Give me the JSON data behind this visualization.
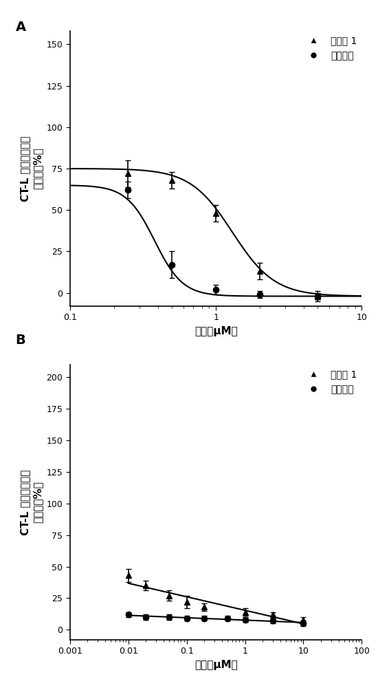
{
  "panel_A": {
    "label": "A",
    "xlabel": "剂量（μM）",
    "ylabel_line1": "CT-L 蛋白酶体活性",
    "ylabel_line2": "（对照的%）",
    "xlog_min": 0.1,
    "xlog_max": 10,
    "ylim": [
      -8,
      158
    ],
    "yticks": [
      0,
      25,
      50,
      75,
      100,
      125,
      150
    ],
    "series": [
      {
        "name": "实施例 1",
        "marker": "^",
        "x": [
          0.25,
          0.5,
          1.0,
          2.0,
          5.0
        ],
        "y": [
          72,
          68,
          48,
          13,
          -2
        ],
        "yerr": [
          8,
          5,
          5,
          5,
          3
        ],
        "ic50": 1.3,
        "hill": 3.0,
        "top": 75,
        "bottom": -2
      },
      {
        "name": "硷替佐米",
        "marker": "o",
        "x": [
          0.25,
          0.5,
          1.0,
          2.0,
          5.0
        ],
        "y": [
          62,
          17,
          2,
          -1,
          -2
        ],
        "yerr": [
          5,
          8,
          3,
          2,
          2
        ],
        "ic50": 0.38,
        "hill": 4.5,
        "top": 65,
        "bottom": -2
      }
    ]
  },
  "panel_B": {
    "label": "B",
    "xlabel": "剂量（μM）",
    "ylabel_line1": "CT-L 蛋白酶体活性",
    "ylabel_line2": "（对照的%）",
    "xlog_min": 0.001,
    "xlog_max": 100,
    "ylim": [
      -8,
      210
    ],
    "yticks": [
      0,
      25,
      50,
      75,
      100,
      125,
      150,
      175,
      200
    ],
    "series": [
      {
        "name": "实施例 1",
        "marker": "^",
        "x": [
          0.01,
          0.02,
          0.05,
          0.1,
          0.2,
          1.0,
          3.0,
          10.0
        ],
        "y": [
          43,
          35,
          27,
          22,
          18,
          14,
          12,
          8
        ],
        "yerr": [
          5,
          4,
          4,
          5,
          3,
          3,
          2,
          2
        ]
      },
      {
        "name": "硷替佐米",
        "marker": "o",
        "x": [
          0.01,
          0.02,
          0.05,
          0.1,
          0.2,
          0.5,
          1.0,
          3.0,
          10.0
        ],
        "y": [
          12,
          10,
          10,
          9,
          9,
          9,
          8,
          7,
          5
        ],
        "yerr": [
          2,
          2,
          2,
          2,
          2,
          2,
          2,
          2,
          2
        ]
      }
    ]
  },
  "marker_color": "#000000",
  "line_color": "#000000",
  "marker_size": 6,
  "line_width": 1.5,
  "legend_fontsize": 10,
  "axis_label_fontsize": 11,
  "tick_fontsize": 9,
  "panel_label_fontsize": 14
}
